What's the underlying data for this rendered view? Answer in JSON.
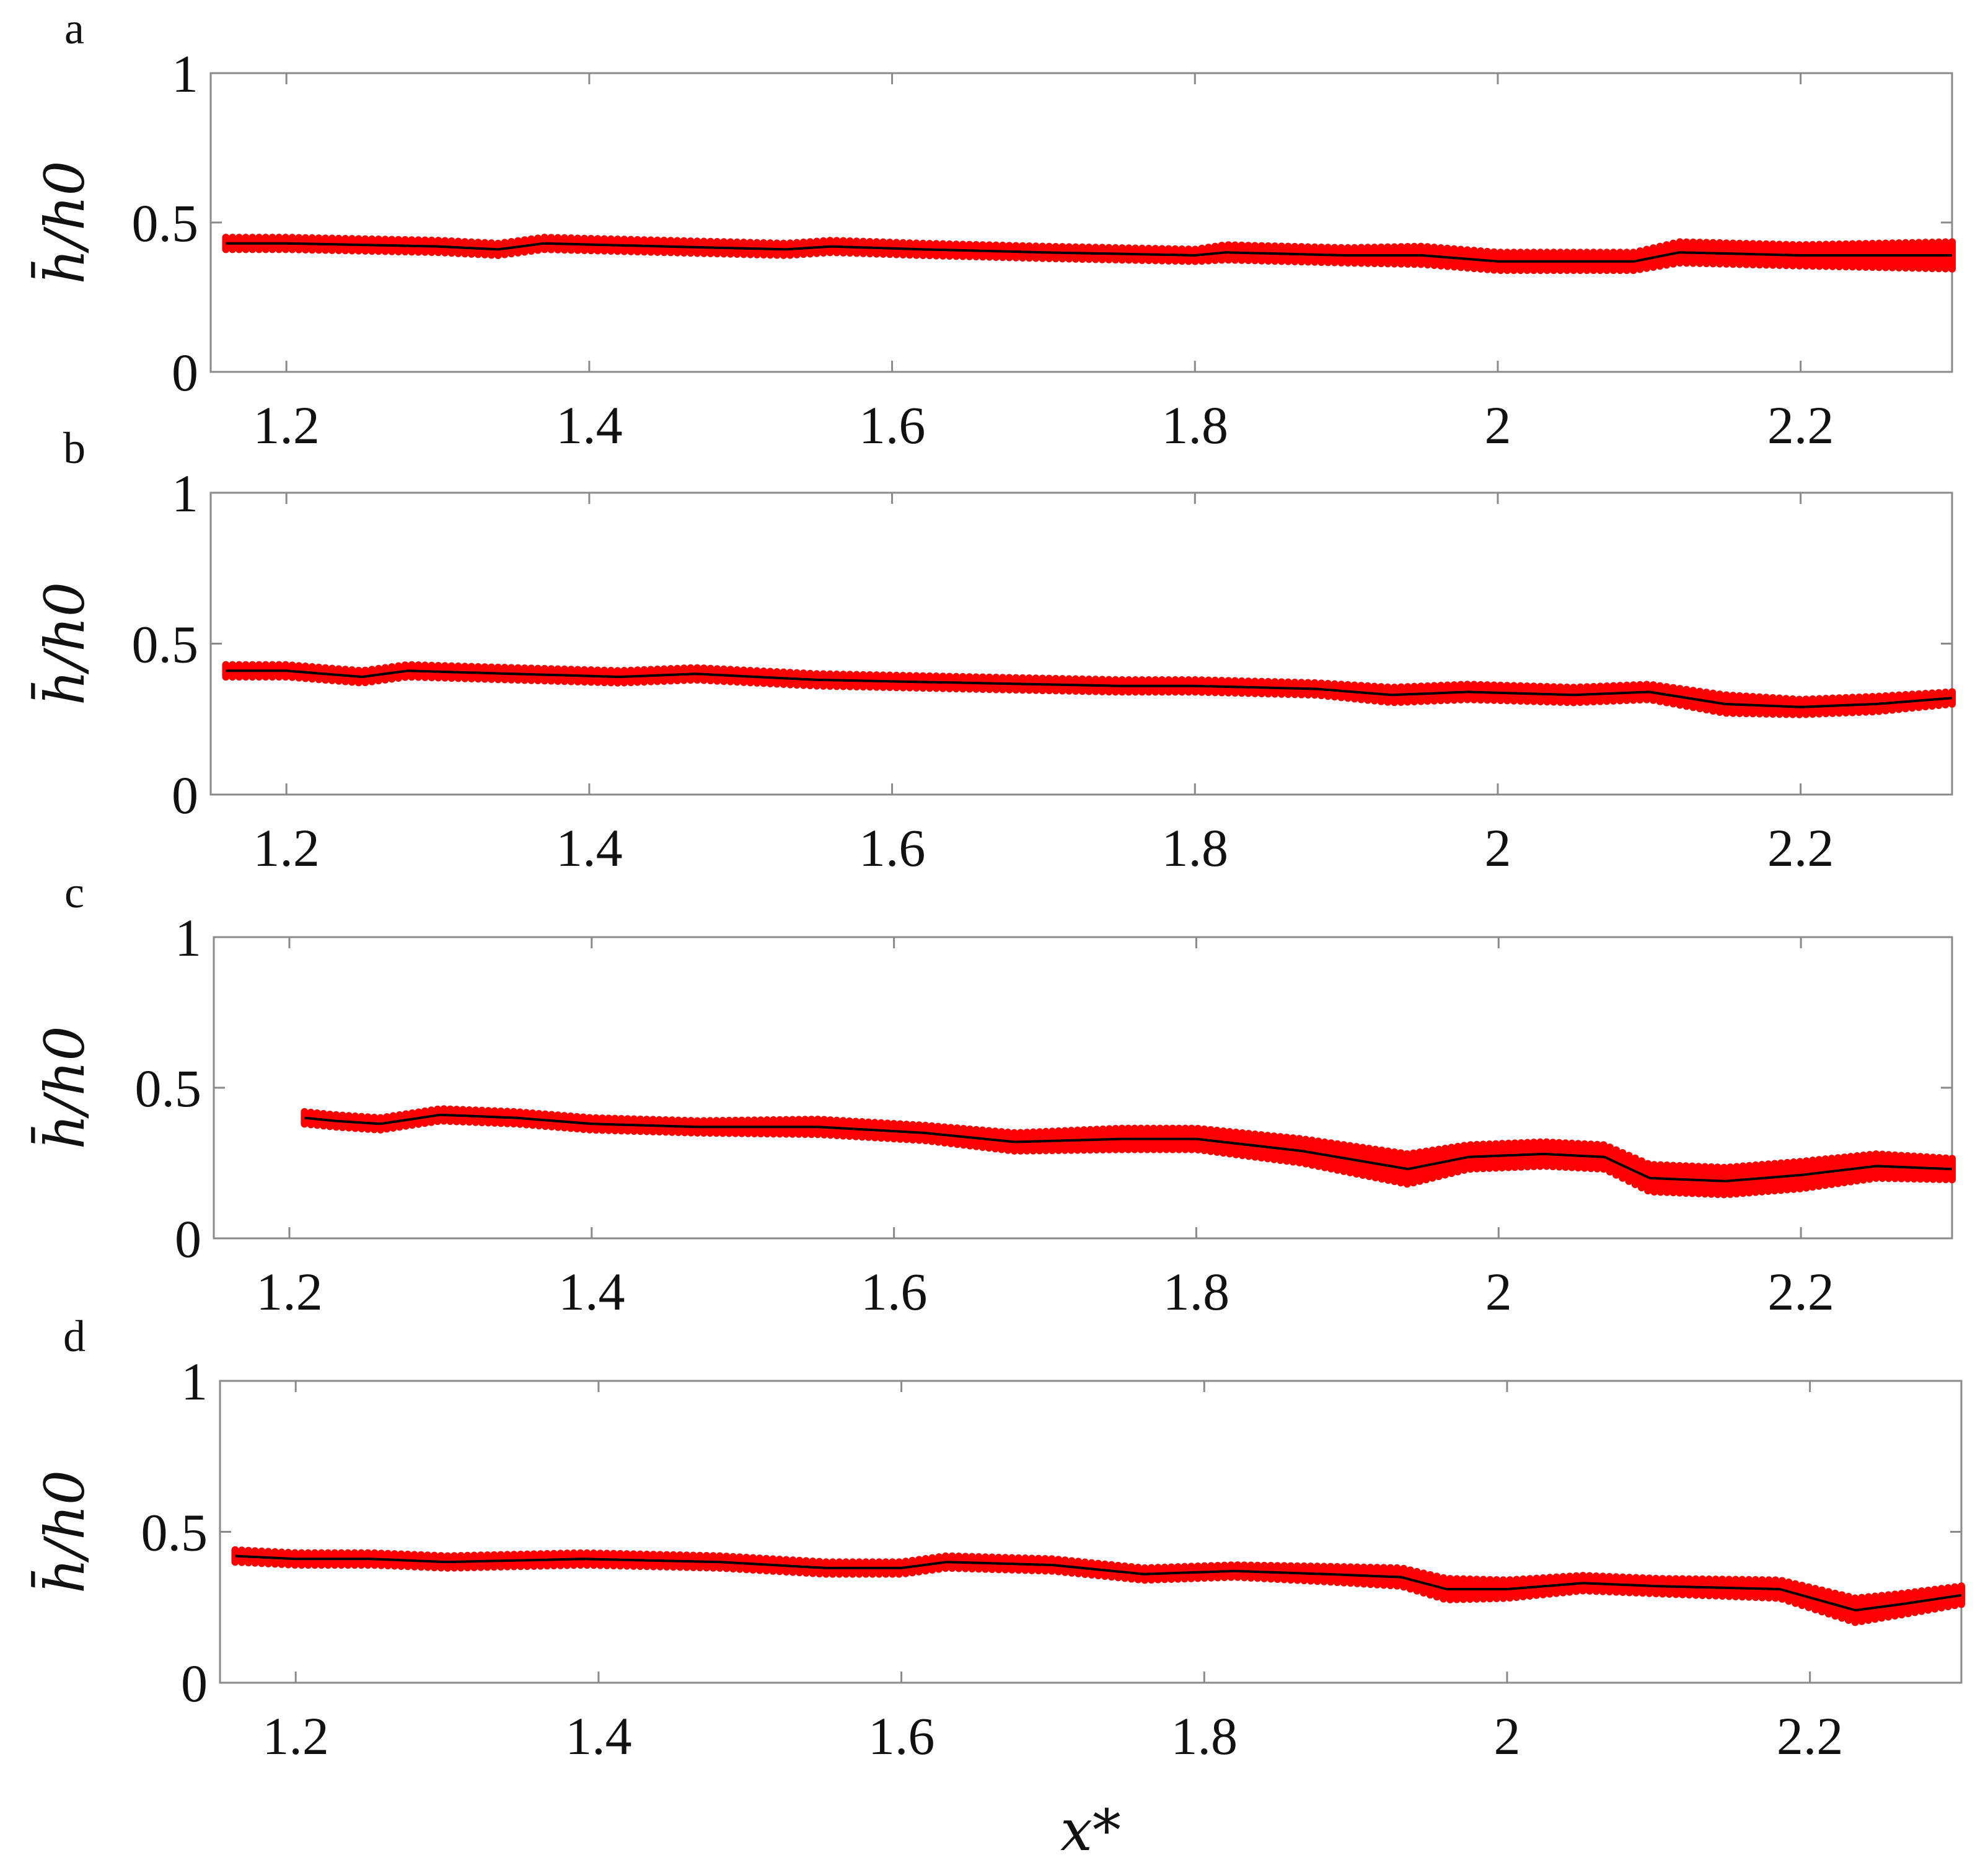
{
  "figure": {
    "xlabel": "x*",
    "ylabel": "h̄/h0",
    "colors": {
      "scatter": "#ff0000",
      "mean_line": "#000000",
      "axes": "#8a8a8a"
    }
  },
  "chart_data": [
    {
      "panel": "a",
      "type": "line",
      "title": "",
      "xlim": [
        1.15,
        2.3
      ],
      "ylim": [
        0,
        1
      ],
      "xticks": [
        "1.2",
        "1.4",
        "1.6",
        "1.8",
        "2",
        "2.2"
      ],
      "yticks": [
        "0",
        "0.5",
        "1"
      ],
      "grid": false,
      "legend": "none",
      "series": [
        {
          "style": "scatter-band",
          "color": "#ff0000",
          "x": [
            1.16,
            1.2,
            1.3,
            1.34,
            1.37,
            1.45,
            1.53,
            1.56,
            1.62,
            1.7,
            1.8,
            1.82,
            1.9,
            1.95,
            2.0,
            2.05,
            2.09,
            2.12,
            2.2,
            2.3
          ],
          "y": [
            0.43,
            0.43,
            0.42,
            0.41,
            0.43,
            0.42,
            0.41,
            0.42,
            0.41,
            0.4,
            0.39,
            0.4,
            0.39,
            0.39,
            0.37,
            0.37,
            0.37,
            0.4,
            0.39,
            0.39
          ],
          "spread": [
            0.02,
            0.02,
            0.02,
            0.02,
            0.02,
            0.02,
            0.02,
            0.02,
            0.02,
            0.02,
            0.02,
            0.025,
            0.025,
            0.03,
            0.03,
            0.03,
            0.03,
            0.035,
            0.035,
            0.045
          ]
        },
        {
          "style": "line",
          "color": "#000000",
          "x": [
            1.16,
            1.2,
            1.3,
            1.34,
            1.37,
            1.45,
            1.53,
            1.56,
            1.62,
            1.7,
            1.8,
            1.82,
            1.9,
            1.95,
            2.0,
            2.05,
            2.09,
            2.12,
            2.2,
            2.3
          ],
          "y": [
            0.43,
            0.43,
            0.42,
            0.41,
            0.43,
            0.42,
            0.41,
            0.42,
            0.41,
            0.4,
            0.39,
            0.4,
            0.39,
            0.39,
            0.37,
            0.37,
            0.37,
            0.4,
            0.39,
            0.39
          ]
        }
      ]
    },
    {
      "panel": "b",
      "type": "line",
      "title": "",
      "xlim": [
        1.15,
        2.3
      ],
      "ylim": [
        0,
        1
      ],
      "xticks": [
        "1.2",
        "1.4",
        "1.6",
        "1.8",
        "2",
        "2.2"
      ],
      "yticks": [
        "0",
        "0.5",
        "1"
      ],
      "grid": false,
      "legend": "none",
      "series": [
        {
          "style": "scatter-band",
          "color": "#ff0000",
          "x": [
            1.16,
            1.2,
            1.25,
            1.28,
            1.35,
            1.42,
            1.47,
            1.55,
            1.65,
            1.75,
            1.8,
            1.88,
            1.93,
            1.98,
            2.05,
            2.1,
            2.15,
            2.2,
            2.25,
            2.3
          ],
          "y": [
            0.41,
            0.41,
            0.39,
            0.41,
            0.4,
            0.39,
            0.4,
            0.38,
            0.37,
            0.36,
            0.36,
            0.35,
            0.33,
            0.34,
            0.33,
            0.34,
            0.3,
            0.29,
            0.3,
            0.32
          ],
          "spread": [
            0.02,
            0.02,
            0.02,
            0.02,
            0.02,
            0.02,
            0.02,
            0.02,
            0.02,
            0.02,
            0.02,
            0.02,
            0.025,
            0.025,
            0.025,
            0.025,
            0.03,
            0.025,
            0.025,
            0.02
          ]
        },
        {
          "style": "line",
          "color": "#000000",
          "x": [
            1.16,
            1.2,
            1.25,
            1.28,
            1.35,
            1.42,
            1.47,
            1.55,
            1.65,
            1.75,
            1.8,
            1.88,
            1.93,
            1.98,
            2.05,
            2.1,
            2.15,
            2.2,
            2.25,
            2.3
          ],
          "y": [
            0.41,
            0.41,
            0.39,
            0.41,
            0.4,
            0.39,
            0.4,
            0.38,
            0.37,
            0.36,
            0.36,
            0.35,
            0.33,
            0.34,
            0.33,
            0.34,
            0.3,
            0.29,
            0.3,
            0.32
          ]
        }
      ]
    },
    {
      "panel": "c",
      "type": "line",
      "title": "",
      "xlim": [
        1.15,
        2.3
      ],
      "ylim": [
        0,
        1
      ],
      "xticks": [
        "1.2",
        "1.4",
        "1.6",
        "1.8",
        "2",
        "2.2"
      ],
      "yticks": [
        "0",
        "0.5",
        "1"
      ],
      "grid": false,
      "legend": "none",
      "series": [
        {
          "style": "scatter-band",
          "color": "#ff0000",
          "x": [
            1.21,
            1.23,
            1.26,
            1.3,
            1.35,
            1.4,
            1.47,
            1.55,
            1.62,
            1.68,
            1.75,
            1.8,
            1.87,
            1.94,
            1.98,
            2.03,
            2.07,
            2.1,
            2.15,
            2.2,
            2.25,
            2.3
          ],
          "y": [
            0.4,
            0.39,
            0.38,
            0.41,
            0.4,
            0.38,
            0.37,
            0.37,
            0.35,
            0.32,
            0.33,
            0.33,
            0.29,
            0.23,
            0.27,
            0.28,
            0.27,
            0.2,
            0.19,
            0.21,
            0.24,
            0.23
          ],
          "spread": [
            0.02,
            0.02,
            0.02,
            0.02,
            0.02,
            0.02,
            0.02,
            0.025,
            0.025,
            0.03,
            0.035,
            0.035,
            0.04,
            0.05,
            0.04,
            0.04,
            0.04,
            0.045,
            0.045,
            0.045,
            0.04,
            0.035
          ]
        },
        {
          "style": "line",
          "color": "#000000",
          "x": [
            1.21,
            1.23,
            1.26,
            1.3,
            1.35,
            1.4,
            1.47,
            1.55,
            1.62,
            1.68,
            1.75,
            1.8,
            1.87,
            1.94,
            1.98,
            2.03,
            2.07,
            2.1,
            2.15,
            2.2,
            2.25,
            2.3
          ],
          "y": [
            0.4,
            0.39,
            0.38,
            0.41,
            0.4,
            0.38,
            0.37,
            0.37,
            0.35,
            0.32,
            0.33,
            0.33,
            0.29,
            0.23,
            0.27,
            0.28,
            0.27,
            0.2,
            0.19,
            0.21,
            0.24,
            0.23
          ]
        }
      ]
    },
    {
      "panel": "d",
      "type": "line",
      "title": "",
      "xlim": [
        1.15,
        2.3
      ],
      "ylim": [
        0,
        1
      ],
      "xticks": [
        "1.2",
        "1.4",
        "1.6",
        "1.8",
        "2",
        "2.2"
      ],
      "yticks": [
        "0",
        "0.5",
        "1"
      ],
      "grid": false,
      "legend": "none",
      "series": [
        {
          "style": "scatter-band",
          "color": "#ff0000",
          "x": [
            1.16,
            1.2,
            1.25,
            1.3,
            1.39,
            1.48,
            1.55,
            1.6,
            1.63,
            1.7,
            1.76,
            1.82,
            1.88,
            1.93,
            1.96,
            2.0,
            2.05,
            2.1,
            2.18,
            2.23,
            2.26,
            2.3
          ],
          "y": [
            0.42,
            0.41,
            0.41,
            0.4,
            0.41,
            0.4,
            0.38,
            0.38,
            0.4,
            0.39,
            0.36,
            0.37,
            0.36,
            0.35,
            0.31,
            0.31,
            0.33,
            0.32,
            0.31,
            0.24,
            0.26,
            0.29
          ],
          "spread": [
            0.02,
            0.02,
            0.02,
            0.02,
            0.02,
            0.02,
            0.02,
            0.02,
            0.02,
            0.02,
            0.02,
            0.02,
            0.025,
            0.03,
            0.035,
            0.03,
            0.025,
            0.025,
            0.03,
            0.04,
            0.035,
            0.03
          ]
        },
        {
          "style": "line",
          "color": "#000000",
          "x": [
            1.16,
            1.2,
            1.25,
            1.3,
            1.39,
            1.48,
            1.55,
            1.6,
            1.63,
            1.7,
            1.76,
            1.82,
            1.88,
            1.93,
            1.96,
            2.0,
            2.05,
            2.1,
            2.18,
            2.23,
            2.26,
            2.3
          ],
          "y": [
            0.42,
            0.41,
            0.41,
            0.4,
            0.41,
            0.4,
            0.38,
            0.38,
            0.4,
            0.39,
            0.36,
            0.37,
            0.36,
            0.35,
            0.31,
            0.31,
            0.33,
            0.32,
            0.31,
            0.24,
            0.26,
            0.29
          ]
        }
      ]
    }
  ]
}
